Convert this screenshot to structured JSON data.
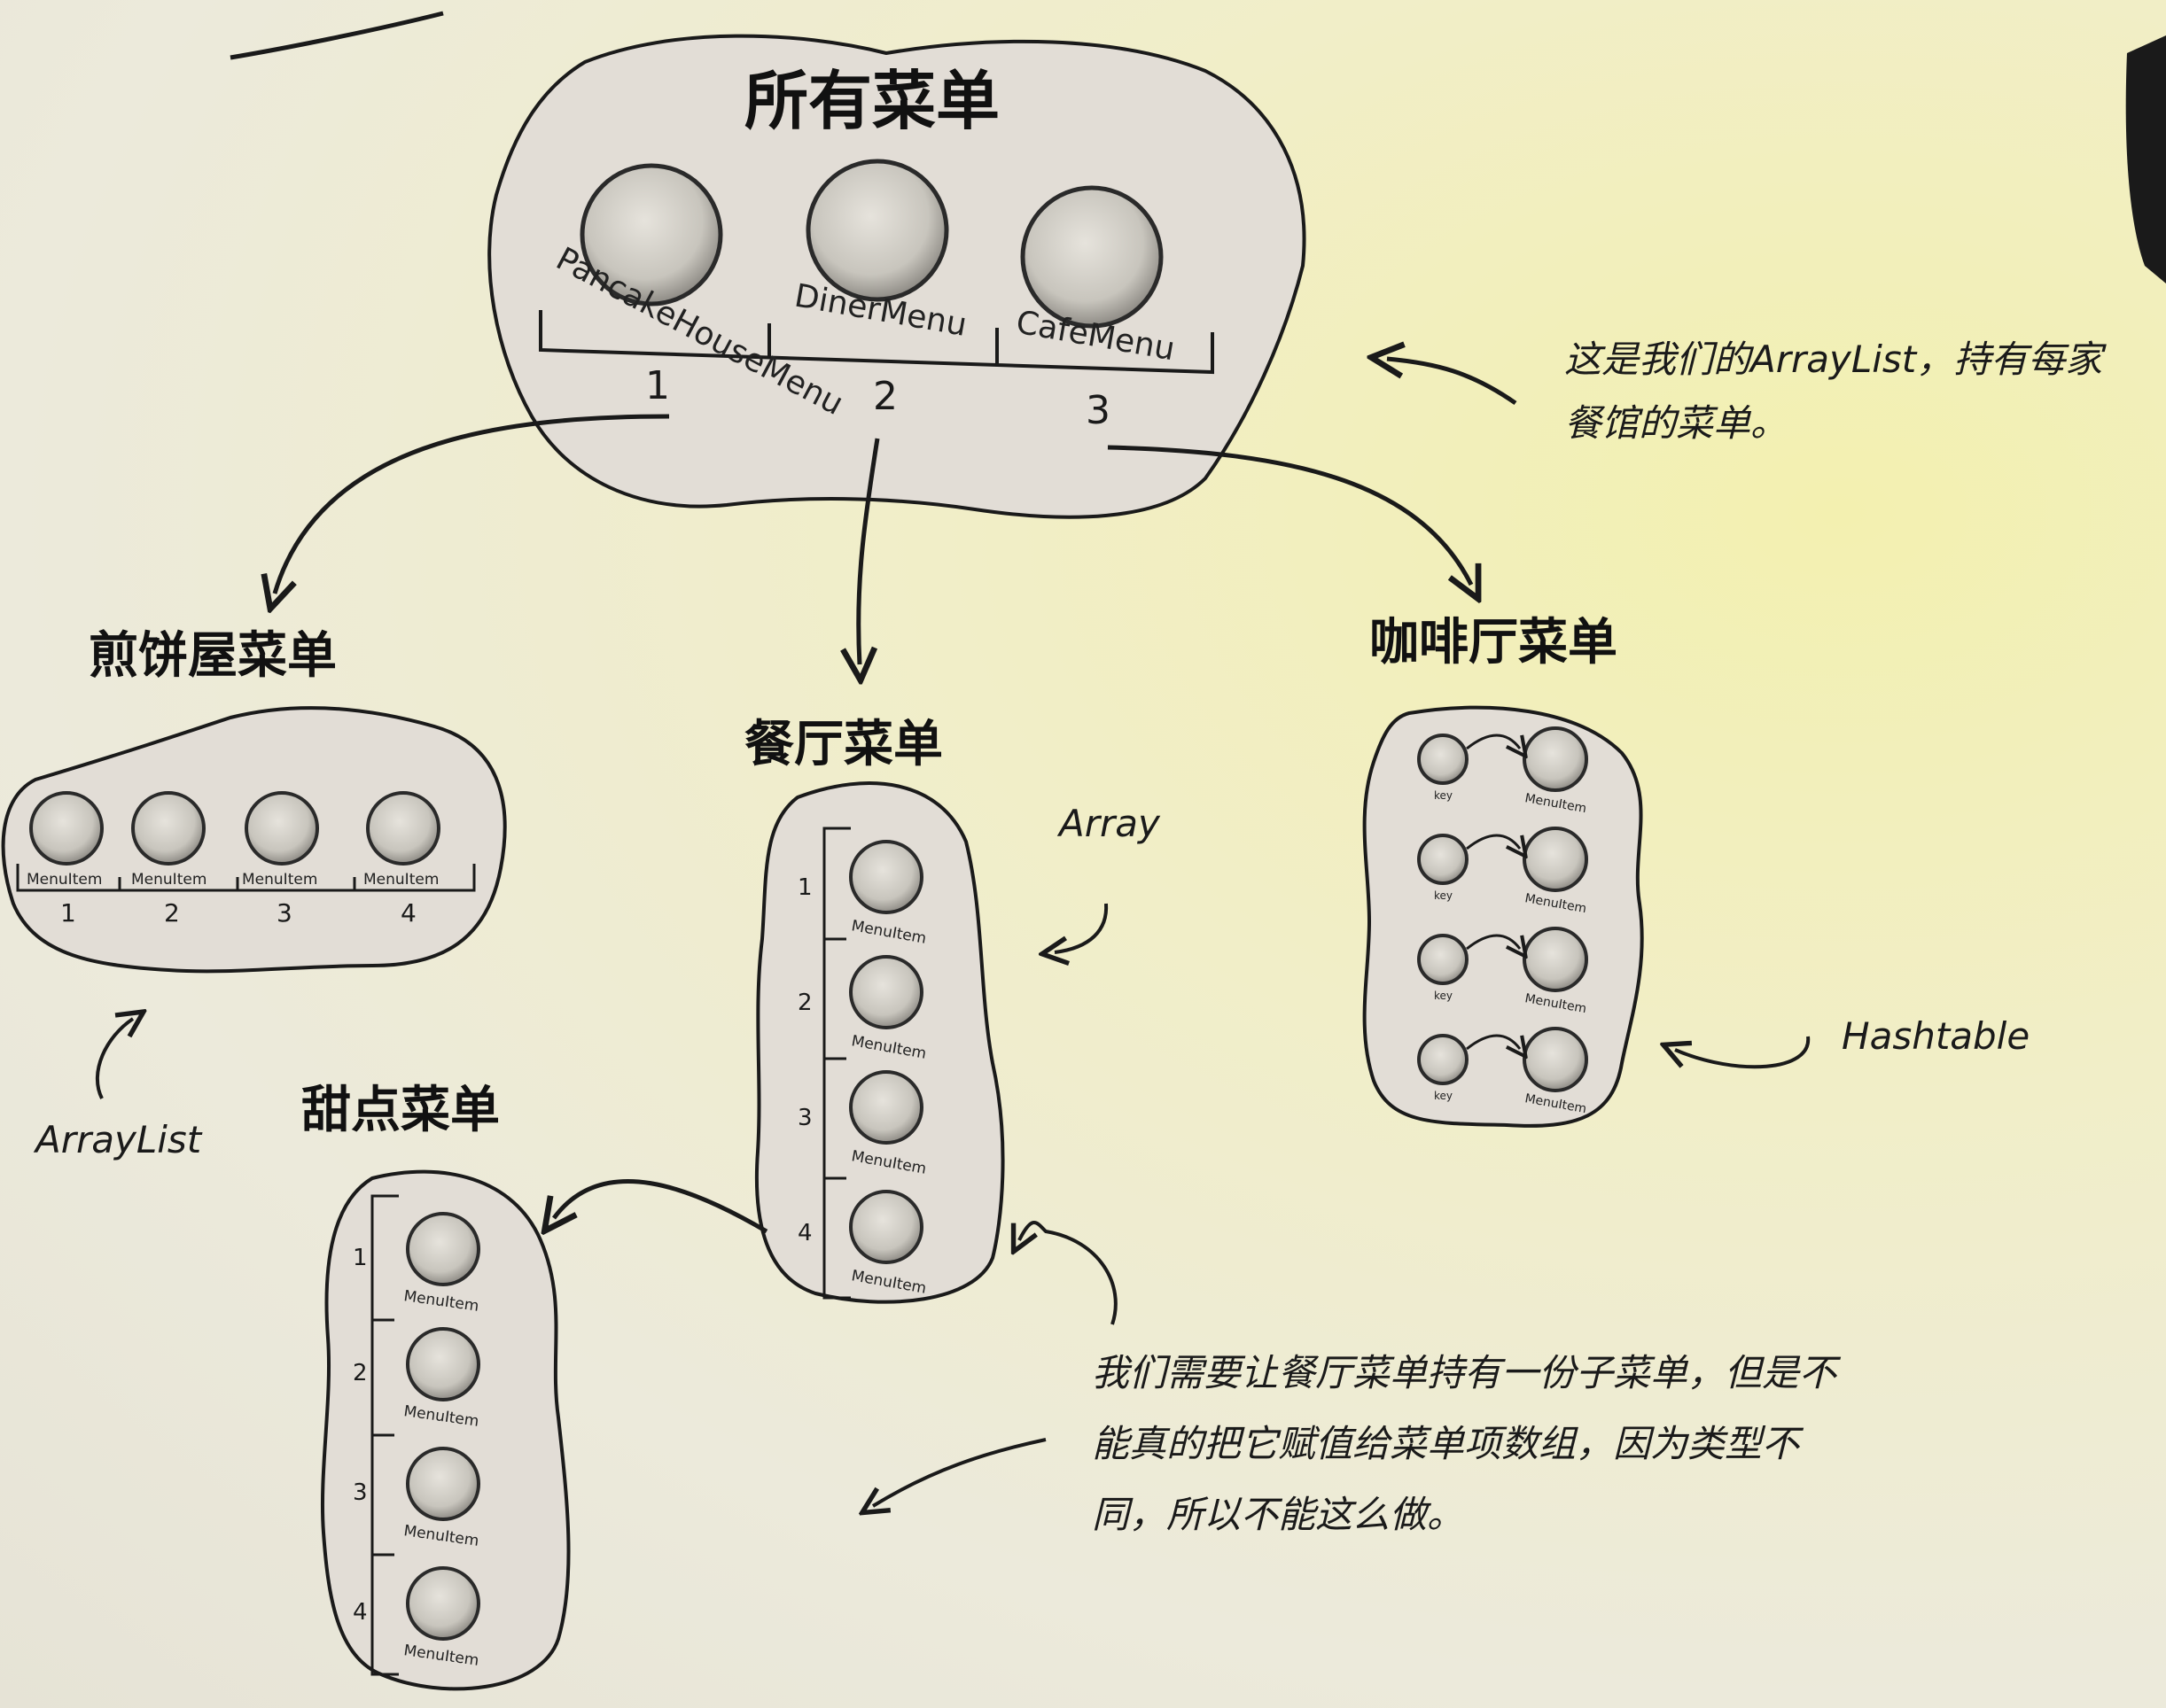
{
  "headings": {
    "all_menus": "所有菜单",
    "pancake_menu": "煎饼屋菜单",
    "diner_menu": "餐厅菜单",
    "cafe_menu": "咖啡厅菜单",
    "dessert_menu": "甜点菜单"
  },
  "all_menus": {
    "items": [
      {
        "name": "PancakeHouseMenu",
        "index": "1"
      },
      {
        "name": "DinerMenu",
        "index": "2"
      },
      {
        "name": "CafeMenu",
        "index": "3"
      }
    ]
  },
  "pancake": {
    "item_label": "MenuItem",
    "indices": [
      "1",
      "2",
      "3",
      "4"
    ],
    "structure_label": "ArrayList"
  },
  "diner": {
    "item_label": "MenuItem",
    "indices": [
      "1",
      "2",
      "3",
      "4"
    ],
    "structure_label": "Array"
  },
  "dessert": {
    "item_label": "MenuItem",
    "indices": [
      "1",
      "2",
      "3",
      "4"
    ]
  },
  "cafe": {
    "key_label": "key",
    "item_label": "MenuItem",
    "rows": 4,
    "structure_label": "Hashtable"
  },
  "notes": {
    "top": [
      "这是我们的ArrayList，持有每家",
      "餐馆的菜单。"
    ],
    "bottom": [
      "我们需要让餐厅菜单持有一份子菜单，但是不",
      "能真的把它赋值给菜单项数组，因为类型不",
      "同，所以不能这么做。"
    ]
  },
  "colors": {
    "ink": "#1a1a1a",
    "blob_fill": "#e2ddd6",
    "circle_fill": "#c9c6bc",
    "circle_rim": "#3a3a3a",
    "paper": "#efecd8"
  }
}
